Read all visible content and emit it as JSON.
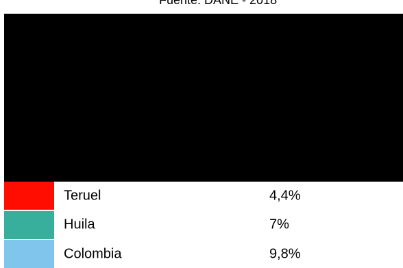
{
  "source_text": "Fuente: DANE - 2018",
  "colors": {
    "panel": "#000000",
    "teruel": "#ff0d00",
    "huila": "#37af9c",
    "colombia": "#80c6ec"
  },
  "chart_data": {
    "type": "table",
    "source": "Fuente: DANE - 2018",
    "rows": [
      {
        "label": "Teruel",
        "value": 4.4,
        "display": "4,4%",
        "color": "#ff0d00"
      },
      {
        "label": "Huila",
        "value": 7,
        "display": "7%",
        "color": "#37af9c"
      },
      {
        "label": "Colombia",
        "value": 9.8,
        "display": "9,8%",
        "color": "#80c6ec"
      }
    ]
  }
}
